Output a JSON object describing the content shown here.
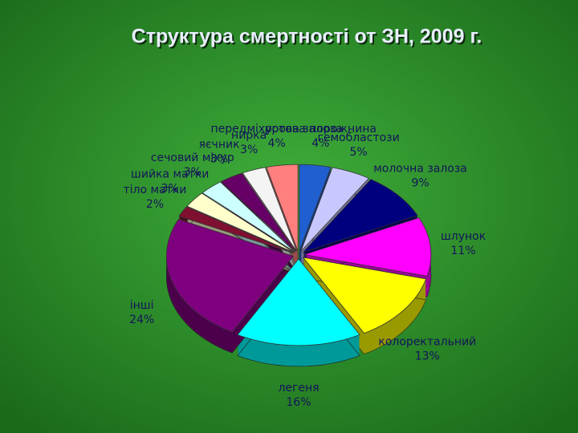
{
  "chart_data": {
    "type": "pie",
    "title": "Структура смертності от ЗН, 2009 г.",
    "categories": [
      "ротова порожнина",
      "гемобластози",
      "молочна залоза",
      "шлунок",
      "колоректальний",
      "легеня",
      "інші",
      "тіло матки",
      "шийка матки",
      "сечовий міхур",
      "яєчник",
      "нирка",
      "передміхурова залоза"
    ],
    "values": [
      4,
      5,
      9,
      11,
      13,
      16,
      24,
      2,
      3,
      3,
      3,
      3,
      4
    ],
    "value_labels": [
      "4%",
      "5%",
      "9%",
      "11%",
      "13%",
      "16%",
      "24%",
      "2%",
      "3%",
      "3%",
      "3%",
      "3%",
      "4%"
    ],
    "colors": [
      "#1f5fd0",
      "#c8c8ff",
      "#00007f",
      "#ff00ff",
      "#ffff00",
      "#00ffff",
      "#7f007f",
      "#7f1030",
      "#ffffcc",
      "#ccffff",
      "#660066",
      "#f4f4f4",
      "#ff7f7f"
    ]
  }
}
